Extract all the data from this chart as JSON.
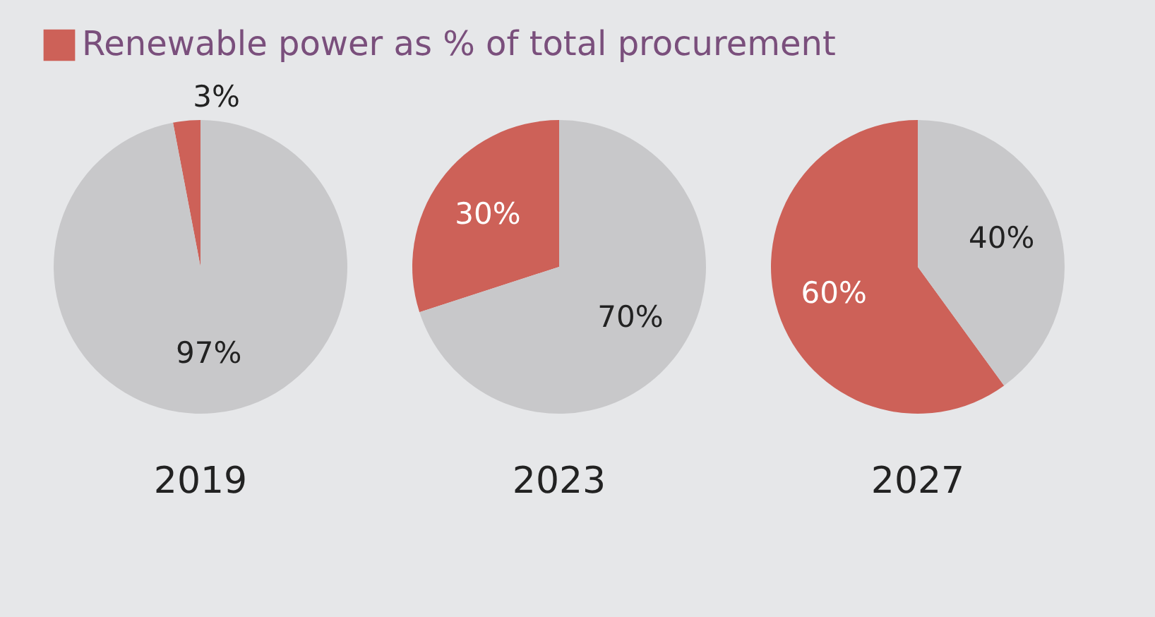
{
  "chart_data": [
    {
      "type": "pie",
      "title": "2019",
      "categories": [
        "Renewable power as % of total procurement",
        null
      ],
      "values": [
        3,
        97
      ],
      "colors": [
        "#cd6158",
        "#c8c8ca"
      ],
      "value_labels": [
        "3%",
        "97%"
      ],
      "legend": "top"
    },
    {
      "type": "pie",
      "title": "2023",
      "categories": [
        null,
        null
      ],
      "values": [
        30,
        70
      ],
      "colors": [
        "#cd6158",
        "#c8c8ca"
      ],
      "value_labels": [
        "30%",
        "70%"
      ]
    },
    {
      "type": "pie",
      "title": "2027",
      "categories": [
        null,
        null
      ],
      "values": [
        60,
        40
      ],
      "colors": [
        "#cd6158",
        "#c8c8ca"
      ],
      "value_labels": [
        "60%",
        "40%"
      ]
    }
  ]
}
